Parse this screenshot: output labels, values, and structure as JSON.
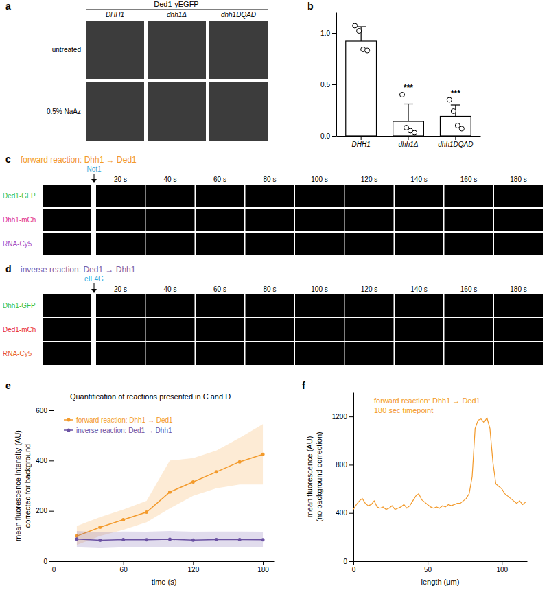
{
  "figure_panels": {
    "a": {
      "label": "a",
      "header": "Ded1-yEGFP",
      "columns": [
        "DHH1",
        "dhh1Δ",
        "dhh1DQAD"
      ],
      "rows": [
        "untreated",
        "0.5% NaAz"
      ]
    },
    "c": {
      "label": "c",
      "title": "forward reaction: Dhh1 → Ded1",
      "color": "#f39a2b",
      "added": "Not1",
      "added_color": "#2fa8dc",
      "timepoints": [
        "20 s",
        "40 s",
        "60 s",
        "80 s",
        "100 s",
        "120 s",
        "140 s",
        "160 s",
        "180 s"
      ],
      "channels": [
        {
          "name": "Ded1-GFP",
          "color": "#3fbf3f"
        },
        {
          "name": "Dhh1-mCh",
          "color": "#e0338a"
        },
        {
          "name": "RNA-Cy5",
          "color": "#a34cc4"
        }
      ]
    },
    "d": {
      "label": "d",
      "title": "inverse reaction: Ded1 → Dhh1",
      "color": "#7b5ea7",
      "added": "eIF4G",
      "added_color": "#2fa8dc",
      "timepoints": [
        "20 s",
        "40 s",
        "60 s",
        "80 s",
        "100 s",
        "120 s",
        "140 s",
        "160 s",
        "180 s"
      ],
      "channels": [
        {
          "name": "Dhh1-GFP",
          "color": "#3fbf3f"
        },
        {
          "name": "Ded1-mCh",
          "color": "#e83030"
        },
        {
          "name": "RNA-Cy5",
          "color": "#e85a2a"
        }
      ]
    }
  },
  "chart_data": [
    {
      "panel": "b",
      "type": "bar",
      "categories": [
        "DHH1",
        "dhh1Δ",
        "dhh1DQAD"
      ],
      "values": [
        0.92,
        0.14,
        0.19
      ],
      "errors": [
        0.14,
        0.17,
        0.11
      ],
      "points": [
        [
          1.07,
          1.02,
          0.84,
          0.83
        ],
        [
          0.4,
          0.08,
          0.05,
          0.03
        ],
        [
          0.35,
          0.24,
          0.1,
          0.07
        ]
      ],
      "annotations": [
        {
          "category": 1,
          "text": "***"
        },
        {
          "category": 2,
          "text": "***"
        }
      ],
      "color": "#ffffff",
      "ylim": [
        0,
        1.2
      ],
      "yticks": [
        {
          "value": 0,
          "label": "0.0"
        },
        {
          "value": 0.5,
          "label": "0.5"
        },
        {
          "value": 1,
          "label": "1.0"
        }
      ]
    },
    {
      "panel": "e",
      "type": "line",
      "title": "Quantification of reactions presented in C and D",
      "xlabel": "time (s)",
      "ylabel": [
        "mean fluorescence intensity (AU)",
        "corrected for background"
      ],
      "x": [
        20,
        40,
        60,
        80,
        100,
        120,
        140,
        160,
        180
      ],
      "series": [
        {
          "name": "forward reaction: Dhh1 → Ded1",
          "color": "#f39a2b",
          "marker": "circle",
          "values": [
            100,
            135,
            165,
            195,
            275,
            315,
            355,
            395,
            425
          ],
          "lower": [
            65,
            100,
            125,
            155,
            210,
            260,
            290,
            305,
            305
          ],
          "upper": [
            140,
            175,
            205,
            240,
            400,
            410,
            440,
            490,
            545
          ]
        },
        {
          "name": "inverse reaction: Ded1 → Dhh1",
          "color": "#6b52a3",
          "marker": "circle",
          "values": [
            88,
            83,
            86,
            85,
            87,
            84,
            86,
            86,
            85
          ],
          "lower": [
            55,
            52,
            55,
            55,
            55,
            55,
            57,
            55,
            55
          ],
          "upper": [
            120,
            115,
            118,
            117,
            120,
            117,
            118,
            118,
            117
          ]
        }
      ],
      "xlim": [
        0,
        190
      ],
      "xticks": [
        0,
        60,
        120,
        180
      ],
      "ylim": [
        0,
        600
      ],
      "yticks": [
        0,
        200,
        400,
        600
      ],
      "legend": "upper left"
    },
    {
      "panel": "f",
      "type": "line",
      "annotations": [
        "forward reaction: Dhh1 → Ded1",
        "180 sec timepoint"
      ],
      "xlabel": "length (μm)",
      "ylabel": [
        "mean fluorescence (AU)",
        "(no background correction)"
      ],
      "x": [
        0,
        2,
        4,
        6,
        8,
        10,
        12,
        14,
        16,
        18,
        20,
        22,
        24,
        26,
        28,
        30,
        32,
        34,
        36,
        38,
        40,
        42,
        44,
        46,
        48,
        50,
        52,
        54,
        56,
        58,
        60,
        62,
        64,
        66,
        68,
        70,
        72,
        74,
        76,
        78,
        80,
        82,
        84,
        86,
        88,
        90,
        92,
        94,
        96,
        98,
        100,
        102,
        104,
        106,
        108,
        110,
        112,
        114,
        116
      ],
      "series": [
        {
          "color": "#f39a2b",
          "values": [
            430,
            470,
            500,
            520,
            480,
            460,
            470,
            500,
            450,
            440,
            450,
            430,
            440,
            460,
            430,
            440,
            450,
            470,
            440,
            460,
            500,
            540,
            560,
            510,
            490,
            470,
            450,
            440,
            450,
            440,
            460,
            450,
            470,
            460,
            470,
            480,
            480,
            500,
            520,
            560,
            700,
            1100,
            1170,
            1180,
            1150,
            1190,
            1100,
            820,
            640,
            620,
            600,
            560,
            540,
            520,
            500,
            480,
            500,
            470,
            490
          ]
        }
      ],
      "xlim": [
        0,
        117
      ],
      "xticks": [
        0,
        50,
        100
      ],
      "ylim": [
        0,
        1400
      ],
      "yticks": [
        0,
        400,
        800,
        1200
      ]
    }
  ]
}
